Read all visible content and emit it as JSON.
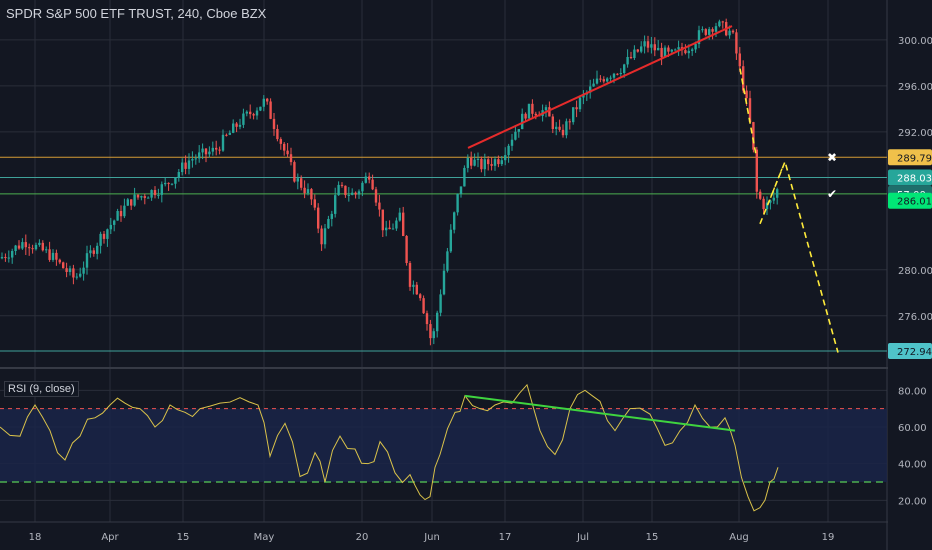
{
  "header": {
    "title": "SPDR S&P 500 ETF TRUST, 240, Cboe BZX"
  },
  "rsi_panel": {
    "label": "RSI (9, close)"
  },
  "colors": {
    "background": "#131722",
    "grid": "#2a2e39",
    "up": "#26a69a",
    "down": "#ef5350",
    "trend_red": "#e52b2b",
    "trend_green": "#4caf50",
    "projection": "#ffeb3b",
    "level_orange": "#d49b35",
    "level_teal": "#3fa29a",
    "level_green": "#4caf50",
    "rsi_line": "#d9c24a",
    "rsi_band": "#1a2448",
    "rsi_upper": "#ef5350",
    "rsi_lower": "#4caf50"
  },
  "chart_data": [
    {
      "type": "candlestick",
      "title": "SPDR S&P 500 ETF TRUST, 240, Cboe BZX",
      "ylim": [
        272.5,
        302.6
      ],
      "y_ticks": [
        "300.00",
        "296.00",
        "292.00",
        "280.00",
        "276.00"
      ],
      "x_ticks": [
        "18",
        "Apr",
        "15",
        "May",
        "20",
        "Jun",
        "17",
        "Jul",
        "15",
        "Aug",
        "19"
      ],
      "price_path": [
        {
          "t": 0,
          "p": 281.0
        },
        {
          "t": 25,
          "p": 282.5
        },
        {
          "t": 50,
          "p": 281.3
        },
        {
          "t": 75,
          "p": 279.2
        },
        {
          "t": 100,
          "p": 282.8
        },
        {
          "t": 130,
          "p": 286.0
        },
        {
          "t": 165,
          "p": 287.3
        },
        {
          "t": 190,
          "p": 289.6
        },
        {
          "t": 215,
          "p": 290.4
        },
        {
          "t": 240,
          "p": 292.9
        },
        {
          "t": 265,
          "p": 294.7
        },
        {
          "t": 280,
          "p": 291.3
        },
        {
          "t": 295,
          "p": 288.0
        },
        {
          "t": 310,
          "p": 286.5
        },
        {
          "t": 322,
          "p": 282.5
        },
        {
          "t": 338,
          "p": 287.0
        },
        {
          "t": 355,
          "p": 286.5
        },
        {
          "t": 370,
          "p": 288.5
        },
        {
          "t": 385,
          "p": 283.0
        },
        {
          "t": 400,
          "p": 284.5
        },
        {
          "t": 410,
          "p": 279.0
        },
        {
          "t": 420,
          "p": 278.0
        },
        {
          "t": 432,
          "p": 273.5
        },
        {
          "t": 445,
          "p": 280.5
        },
        {
          "t": 458,
          "p": 286.5
        },
        {
          "t": 468,
          "p": 289.8
        },
        {
          "t": 480,
          "p": 289.0
        },
        {
          "t": 500,
          "p": 289.7
        },
        {
          "t": 512,
          "p": 291.6
        },
        {
          "t": 527,
          "p": 293.9
        },
        {
          "t": 545,
          "p": 293.8
        },
        {
          "t": 560,
          "p": 291.6
        },
        {
          "t": 580,
          "p": 294.7
        },
        {
          "t": 600,
          "p": 296.6
        },
        {
          "t": 620,
          "p": 297.5
        },
        {
          "t": 645,
          "p": 299.6
        },
        {
          "t": 670,
          "p": 298.6
        },
        {
          "t": 690,
          "p": 299.5
        },
        {
          "t": 700,
          "p": 300.5
        },
        {
          "t": 715,
          "p": 301.4
        },
        {
          "t": 732,
          "p": 300.6
        },
        {
          "t": 745,
          "p": 295.3
        },
        {
          "t": 752,
          "p": 291.6
        },
        {
          "t": 757,
          "p": 286.5
        },
        {
          "t": 765,
          "p": 285.5
        },
        {
          "t": 772,
          "p": 285.9
        },
        {
          "t": 780,
          "p": 287.5
        }
      ],
      "rsi": {
        "ylim": [
          12,
          90
        ],
        "y_ticks": [
          "80.00",
          "60.00",
          "40.00",
          "20.00"
        ],
        "upper_level": 70,
        "lower_level": 30,
        "path": [
          {
            "t": 0,
            "v": 60
          },
          {
            "t": 20,
            "v": 55
          },
          {
            "t": 35,
            "v": 72
          },
          {
            "t": 50,
            "v": 58
          },
          {
            "t": 65,
            "v": 42
          },
          {
            "t": 80,
            "v": 55
          },
          {
            "t": 95,
            "v": 65
          },
          {
            "t": 110,
            "v": 72
          },
          {
            "t": 125,
            "v": 73
          },
          {
            "t": 140,
            "v": 70
          },
          {
            "t": 155,
            "v": 60
          },
          {
            "t": 170,
            "v": 72
          },
          {
            "t": 185,
            "v": 68
          },
          {
            "t": 200,
            "v": 70
          },
          {
            "t": 220,
            "v": 73
          },
          {
            "t": 240,
            "v": 76
          },
          {
            "t": 258,
            "v": 72
          },
          {
            "t": 270,
            "v": 44
          },
          {
            "t": 285,
            "v": 62
          },
          {
            "t": 300,
            "v": 33
          },
          {
            "t": 315,
            "v": 46
          },
          {
            "t": 325,
            "v": 30
          },
          {
            "t": 340,
            "v": 55
          },
          {
            "t": 355,
            "v": 48
          },
          {
            "t": 368,
            "v": 40
          },
          {
            "t": 380,
            "v": 52
          },
          {
            "t": 395,
            "v": 35
          },
          {
            "t": 410,
            "v": 34
          },
          {
            "t": 420,
            "v": 23
          },
          {
            "t": 430,
            "v": 22
          },
          {
            "t": 440,
            "v": 45
          },
          {
            "t": 455,
            "v": 68
          },
          {
            "t": 465,
            "v": 77
          },
          {
            "t": 480,
            "v": 70
          },
          {
            "t": 495,
            "v": 72
          },
          {
            "t": 512,
            "v": 73
          },
          {
            "t": 527,
            "v": 83
          },
          {
            "t": 540,
            "v": 58
          },
          {
            "t": 555,
            "v": 45
          },
          {
            "t": 570,
            "v": 70
          },
          {
            "t": 585,
            "v": 80
          },
          {
            "t": 600,
            "v": 74
          },
          {
            "t": 615,
            "v": 58
          },
          {
            "t": 630,
            "v": 70
          },
          {
            "t": 650,
            "v": 67
          },
          {
            "t": 665,
            "v": 50
          },
          {
            "t": 680,
            "v": 58
          },
          {
            "t": 695,
            "v": 72
          },
          {
            "t": 710,
            "v": 60
          },
          {
            "t": 725,
            "v": 65
          },
          {
            "t": 735,
            "v": 50
          },
          {
            "t": 748,
            "v": 22
          },
          {
            "t": 760,
            "v": 16
          },
          {
            "t": 770,
            "v": 30
          },
          {
            "t": 778,
            "v": 38
          }
        ]
      },
      "levels": [
        {
          "price": 289.79,
          "label": "289.79",
          "color": "#d49b35",
          "tag_bg": "#f0c04a",
          "tag_fg": "#131722"
        },
        {
          "price": 288.03,
          "label": "288.03",
          "color": "#3fa29a",
          "tag_bg": "#26a69a",
          "tag_fg": "#ffffff"
        },
        {
          "price": 286.6,
          "label": "57:00",
          "color": "#4caf50",
          "tag_bg": "#1e6e6b",
          "tag_fg": "#ffffff"
        },
        {
          "price": 286.01,
          "label": "286.01",
          "color": null,
          "tag_bg": "#00e676",
          "tag_fg": "#131722"
        },
        {
          "price": 272.94,
          "label": "272.94",
          "color": "#3fa29a",
          "tag_bg": "#4fc3c9",
          "tag_fg": "#131722"
        }
      ],
      "trendlines": [
        {
          "name": "red",
          "from": {
            "t": 468,
            "p": 290.6
          },
          "to": {
            "t": 732,
            "p": 301.2
          }
        },
        {
          "name": "rsi-green",
          "from": {
            "t": 465,
            "v": 77
          },
          "to": {
            "t": 735,
            "v": 58
          }
        }
      ],
      "markers": [
        {
          "symbol": "✖",
          "t": 832,
          "p": 289.75
        },
        {
          "symbol": "✔",
          "t": 832,
          "p": 286.6
        }
      ]
    }
  ]
}
